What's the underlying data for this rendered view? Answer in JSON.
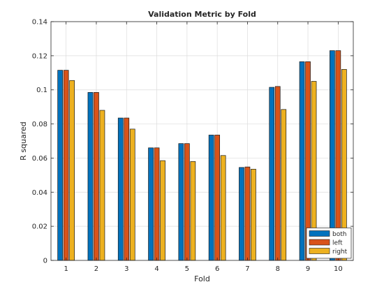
{
  "chart_data": {
    "type": "bar",
    "title": "Validation Metric by Fold",
    "xlabel": "Fold",
    "ylabel": "R squared",
    "categories": [
      "1",
      "2",
      "3",
      "4",
      "5",
      "6",
      "7",
      "8",
      "9",
      "10"
    ],
    "ylim": [
      0,
      0.14
    ],
    "yticks": [
      0,
      0.02,
      0.04,
      0.06,
      0.08,
      0.1,
      0.12,
      0.14
    ],
    "ytick_labels": [
      "0",
      "0.02",
      "0.04",
      "0.06",
      "0.08",
      "0.1",
      "0.12",
      "0.14"
    ],
    "grid": true,
    "legend_position": "bottom-right",
    "series": [
      {
        "name": "both",
        "color": "#0072BD",
        "values": [
          0.1115,
          0.0985,
          0.0835,
          0.066,
          0.0685,
          0.0735,
          0.0545,
          0.1015,
          0.1165,
          0.123
        ]
      },
      {
        "name": "left",
        "color": "#D95319",
        "values": [
          0.1115,
          0.0985,
          0.0835,
          0.066,
          0.0685,
          0.0735,
          0.0548,
          0.102,
          0.1165,
          0.123
        ]
      },
      {
        "name": "right",
        "color": "#EDB120",
        "values": [
          0.1055,
          0.088,
          0.077,
          0.0585,
          0.058,
          0.0615,
          0.0535,
          0.0885,
          0.105,
          0.112
        ]
      }
    ]
  }
}
